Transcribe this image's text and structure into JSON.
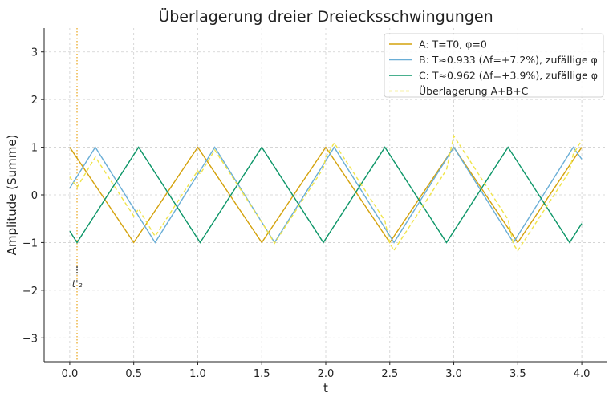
{
  "chart_data": {
    "type": "line",
    "title": "Überlagerung dreier Dreiecksschwingungen",
    "xlabel": "t",
    "ylabel": "Amplitude (Summe)",
    "xlim": [
      -0.2,
      4.2
    ],
    "ylim": [
      -3.5,
      3.5
    ],
    "xticks": [
      0,
      0.5,
      1,
      1.5,
      2,
      2.5,
      3,
      3.5,
      4
    ],
    "xtick_labels": [
      "0.0",
      "0.5",
      "1.0",
      "1.5",
      "2.0",
      "2.5",
      "3.0",
      "3.5",
      "4.0"
    ],
    "yticks": [
      3,
      2,
      1,
      0,
      -1,
      -2,
      -3
    ],
    "ytick_labels": [
      "3",
      "2",
      "1",
      "0",
      "−1",
      "−2",
      "−3"
    ],
    "grid": true,
    "legend_position": "top-right",
    "series": [
      {
        "name": "A: T=T0, φ=0",
        "color": "#d4a20c",
        "style": "solid",
        "x": [
          0,
          0.5,
          1,
          1.5,
          2,
          2.5,
          3,
          3.5,
          4
        ],
        "y": [
          1,
          -1,
          1,
          -1,
          1,
          -1,
          1,
          -1,
          1
        ]
      },
      {
        "name": "B: T≈0.933 (Δf=+7.2%), zufällige φ",
        "color": "#6aaed6",
        "style": "solid",
        "x": [
          0,
          0.2,
          0.667,
          1.133,
          1.6,
          2.066,
          2.533,
          3.0,
          3.466,
          3.933,
          4
        ],
        "y": [
          0.14,
          1,
          -1,
          1,
          -1,
          1,
          -1,
          1,
          -1,
          1,
          0.75
        ]
      },
      {
        "name": "C: T≈0.962 (Δf=+3.9%), zufällige φ",
        "color": "#0d9668",
        "style": "solid",
        "x": [
          0,
          0.057,
          0.538,
          1.019,
          1.5,
          1.981,
          2.462,
          2.943,
          3.424,
          3.905,
          4
        ],
        "y": [
          -0.76,
          -1,
          1,
          -1,
          1,
          -1,
          1,
          -1,
          1,
          -1,
          -0.6
        ]
      },
      {
        "name": "Überlagerung A+B+C",
        "color": "#f0e44a",
        "style": "dashed",
        "sum_of_series": true
      }
    ],
    "annotations": [
      {
        "type": "vline",
        "x": 0.057,
        "color": "#e8a317",
        "style": "dotted"
      },
      {
        "type": "text",
        "text": "t'₂",
        "x": 0.057,
        "y": -1.85
      }
    ]
  }
}
